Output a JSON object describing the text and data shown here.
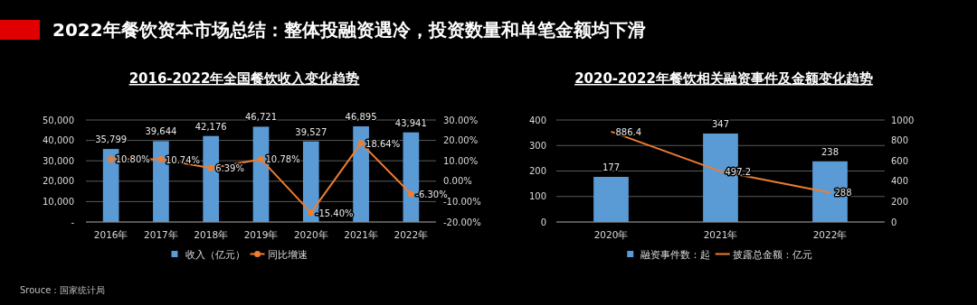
{
  "chart_data": [
    {
      "type": "bar",
      "title": "2016-2022年全国餐饮收入变化趋势",
      "annotations": [
        "2022年餐饮资本市场总结：整体投融资遇冷，投资数量和单笔金额均下滑",
        "Srouce：国家统计局"
      ],
      "categories": [
        "2016年",
        "2017年",
        "2018年",
        "2019年",
        "2020年",
        "2021年",
        "2022年"
      ],
      "series": [
        {
          "name": "收入（亿元）",
          "color": "#5b9bd5",
          "values": [
            35799,
            39644,
            42176,
            46721,
            39527,
            46895,
            43941
          ],
          "value_labels": [
            "35,799",
            "39,644",
            "42,176",
            "46,721",
            "39,527",
            "46,895",
            "43,941"
          ]
        },
        {
          "name": "同比增速",
          "type": "line",
          "axis": "y2",
          "color": "#ed7d31",
          "marker": "circle",
          "values": [
            10.8,
            10.74,
            6.39,
            10.78,
            -15.4,
            18.64,
            -6.3
          ],
          "value_labels": [
            "10.80%",
            "10.74%",
            "6.39%",
            "10.78%",
            "-15.40%",
            "18.64%",
            "-6.30%"
          ]
        }
      ],
      "ylim": [
        0,
        50000
      ],
      "yticks": [
        {
          "value": 0,
          "label": "-"
        },
        {
          "value": 10000,
          "label": "10,000"
        },
        {
          "value": 20000,
          "label": "20,000"
        },
        {
          "value": 30000,
          "label": "30,000"
        },
        {
          "value": 40000,
          "label": "40,000"
        },
        {
          "value": 50000,
          "label": "50,000"
        }
      ],
      "y2lim": [
        -20,
        30
      ],
      "y2ticks": [
        {
          "value": -20,
          "label": "-20.00%"
        },
        {
          "value": -10,
          "label": "-10.00%"
        },
        {
          "value": 0,
          "label": "0.00%"
        },
        {
          "value": 10,
          "label": "10.00%"
        },
        {
          "value": 20,
          "label": "20.00%"
        },
        {
          "value": 30,
          "label": "30.00%"
        }
      ],
      "grid": "y",
      "legend": "bottom"
    },
    {
      "type": "bar",
      "title": "2020-2022年餐饮相关融资事件及金额变化趋势",
      "categories": [
        "2020年",
        "2021年",
        "2022年"
      ],
      "series": [
        {
          "name": "融资事件数：起",
          "color": "#5b9bd5",
          "values": [
            177,
            347,
            238
          ]
        },
        {
          "name": "披露总金额：亿元",
          "type": "line",
          "axis": "y2",
          "color": "#ed7d31",
          "values": [
            886.4,
            497.2,
            288
          ]
        }
      ],
      "ylim": [
        0,
        400
      ],
      "yticks": [
        0,
        100,
        200,
        300,
        400
      ],
      "y2lim": [
        0,
        1000
      ],
      "y2ticks": [
        0,
        200,
        400,
        600,
        800,
        1000
      ],
      "data_labels": true,
      "grid": "y",
      "legend": "bottom"
    }
  ]
}
